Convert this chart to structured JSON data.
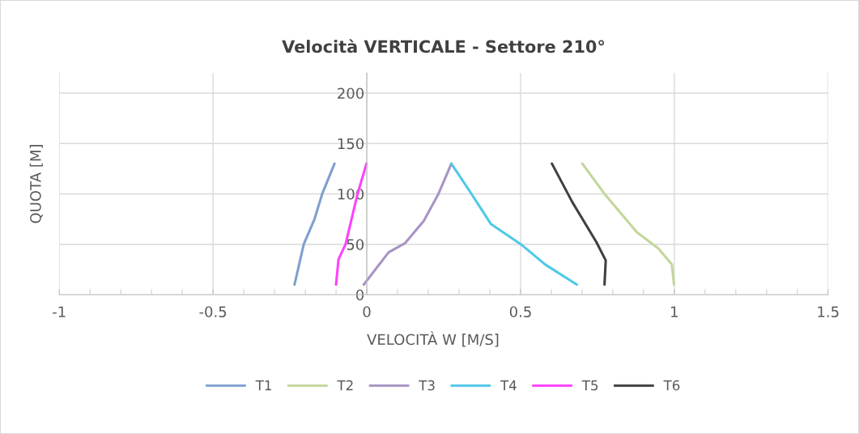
{
  "chart_data": {
    "type": "line",
    "title": "Velocità VERTICALE - Settore 210°",
    "xlabel": "VELOCITÀ W [M/S]",
    "ylabel": "QUOTA [M]",
    "xlim": [
      -1,
      1.5
    ],
    "ylim": [
      0,
      220
    ],
    "xticks": [
      -1,
      {
        "value": -0.9,
        "label": null
      },
      {
        "value": -0.8,
        "label": null
      },
      {
        "value": -0.7,
        "label": null
      },
      {
        "value": -0.6,
        "label": null
      },
      -0.5,
      {
        "value": -0.4,
        "label": null
      },
      {
        "value": -0.3,
        "label": null
      },
      {
        "value": -0.2,
        "label": null
      },
      {
        "value": -0.1,
        "label": null
      },
      0,
      {
        "value": 0.1,
        "label": null
      },
      {
        "value": 0.2,
        "label": null
      },
      {
        "value": 0.3,
        "label": null
      },
      {
        "value": 0.4,
        "label": null
      },
      0.5,
      {
        "value": 0.6,
        "label": null
      },
      {
        "value": 0.7,
        "label": null
      },
      {
        "value": 0.8,
        "label": null
      },
      {
        "value": 0.9,
        "label": null
      },
      1,
      {
        "value": 1.1,
        "label": null
      },
      {
        "value": 1.2,
        "label": null
      },
      {
        "value": 1.3,
        "label": null
      },
      {
        "value": 1.4,
        "label": null
      },
      1.5
    ],
    "yticks": [
      0,
      50,
      100,
      150,
      200
    ],
    "grid": true,
    "legend": "bottom",
    "marker": "none",
    "line_style": "solid",
    "series": [
      {
        "name": "T1",
        "color": "#7f9fcf",
        "x": [
          -0.235,
          -0.22,
          -0.205,
          -0.17,
          -0.145,
          -0.105
        ],
        "values": [
          10,
          30,
          50,
          75,
          100,
          130
        ]
      },
      {
        "name": "T2",
        "color": "#c3d69b",
        "x": [
          0.999,
          0.992,
          0.948,
          0.878,
          0.773,
          0.701
        ],
        "values": [
          10,
          30,
          46,
          62,
          100,
          130
        ]
      },
      {
        "name": "T3",
        "color": "#a894c4",
        "x": [
          -0.01,
          0.071,
          0.124,
          0.185,
          0.233,
          0.275
        ],
        "values": [
          10,
          42,
          51,
          73,
          100,
          130
        ]
      },
      {
        "name": "T4",
        "color": "#4fc8e8",
        "x": [
          0.683,
          0.58,
          0.501,
          0.404,
          0.334,
          0.275
        ],
        "values": [
          10,
          30,
          50,
          70,
          103,
          130
        ]
      },
      {
        "name": "T5",
        "color": "#ff40ff",
        "x": [
          -0.1,
          -0.092,
          -0.069,
          -0.03,
          -0.001
        ],
        "values": [
          10,
          35,
          50,
          100,
          130
        ]
      },
      {
        "name": "T6",
        "color": "#404040",
        "x": [
          0.773,
          0.777,
          0.747,
          0.668,
          0.602
        ],
        "values": [
          10,
          34,
          52,
          92,
          130
        ]
      }
    ]
  }
}
